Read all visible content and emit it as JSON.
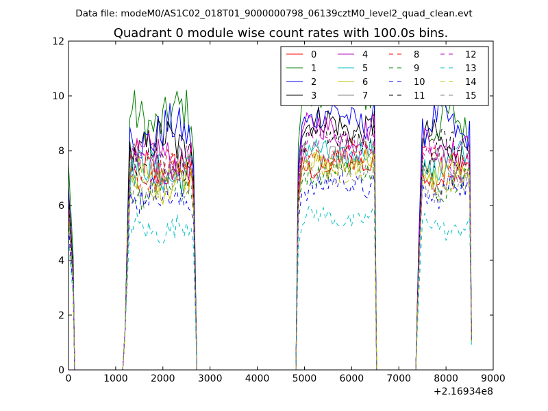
{
  "chart_data": {
    "type": "line",
    "suptitle": "Data file: modeM0/AS1C02_018T01_9000000798_06139cztM0_level2_quad_clean.evt",
    "title": "Quadrant 0 module wise count rates with 100.0s bins.",
    "xlabel": "",
    "ylabel": "",
    "x_offset_label": "+2.16934e8",
    "xlim": [
      0,
      9000
    ],
    "ylim": [
      0,
      12
    ],
    "xticks": [
      0,
      1000,
      2000,
      3000,
      4000,
      5000,
      6000,
      7000,
      8000,
      9000
    ],
    "yticks": [
      0,
      2,
      4,
      6,
      8,
      10,
      12
    ],
    "segments": [
      {
        "x_start": 0,
        "x_end": 100
      },
      {
        "x_start": 1200,
        "x_end": 2600
      },
      {
        "x_start": 4900,
        "x_end": 6500
      },
      {
        "x_start": 7500,
        "x_end": 8500
      }
    ],
    "series": [
      {
        "name": "0",
        "color": "#ff0000",
        "dash": "solid",
        "levels": [
          6.4,
          7.5,
          7.6,
          7.4
        ]
      },
      {
        "name": "1",
        "color": "#008000",
        "dash": "solid",
        "levels": [
          7.5,
          9.3,
          10.3,
          9.0
        ]
      },
      {
        "name": "2",
        "color": "#0000ff",
        "dash": "solid",
        "levels": [
          6.7,
          8.7,
          9.3,
          9.0
        ]
      },
      {
        "name": "3",
        "color": "#000000",
        "dash": "solid",
        "levels": [
          6.5,
          8.3,
          9.0,
          8.3
        ]
      },
      {
        "name": "4",
        "color": "#bf00bf",
        "dash": "solid",
        "levels": [
          6.3,
          7.8,
          8.8,
          8.3
        ]
      },
      {
        "name": "5",
        "color": "#00bfbf",
        "dash": "solid",
        "levels": [
          6.0,
          7.3,
          8.0,
          7.6
        ]
      },
      {
        "name": "6",
        "color": "#bfbf00",
        "dash": "solid",
        "levels": [
          5.8,
          7.0,
          7.6,
          7.2
        ]
      },
      {
        "name": "7",
        "color": "#808080",
        "dash": "solid",
        "levels": [
          6.2,
          7.4,
          8.0,
          7.3
        ]
      },
      {
        "name": "8",
        "color": "#ff0000",
        "dash": "dashed",
        "levels": [
          6.0,
          7.3,
          7.9,
          7.5
        ]
      },
      {
        "name": "9",
        "color": "#008000",
        "dash": "dashed",
        "levels": [
          5.5,
          6.7,
          7.4,
          7.0
        ]
      },
      {
        "name": "10",
        "color": "#0000ff",
        "dash": "dashed",
        "levels": [
          5.2,
          6.4,
          6.8,
          6.6
        ]
      },
      {
        "name": "11",
        "color": "#000000",
        "dash": "dashed",
        "levels": [
          6.3,
          7.8,
          8.5,
          8.0
        ]
      },
      {
        "name": "12",
        "color": "#bf00bf",
        "dash": "dashed",
        "levels": [
          6.1,
          7.6,
          8.3,
          7.8
        ]
      },
      {
        "name": "13",
        "color": "#00bfbf",
        "dash": "dashed",
        "levels": [
          4.8,
          5.2,
          5.6,
          5.3
        ]
      },
      {
        "name": "14",
        "color": "#bfbf00",
        "dash": "dashed",
        "levels": [
          5.7,
          6.9,
          7.5,
          7.0
        ]
      },
      {
        "name": "15",
        "color": "#808080",
        "dash": "dashed",
        "levels": [
          5.6,
          6.8,
          7.3,
          6.9
        ]
      }
    ],
    "legend_position": "upper-right",
    "legend_columns": 4
  }
}
